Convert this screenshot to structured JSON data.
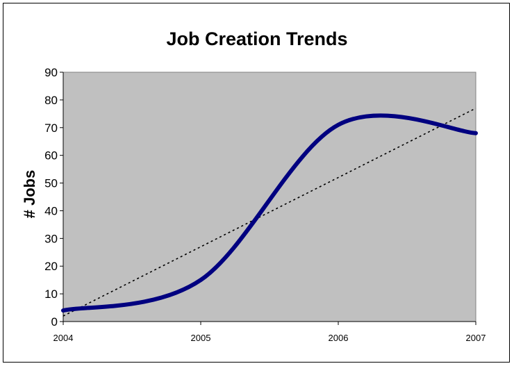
{
  "chart_data": {
    "type": "line",
    "title": "Job Creation Trends",
    "xlabel": "",
    "ylabel": "# Jobs",
    "x_ticks": [
      "2004",
      "2005",
      "2006",
      "2007"
    ],
    "y_ticks": [
      0,
      10,
      20,
      30,
      40,
      50,
      60,
      70,
      80,
      90
    ],
    "xlim": [
      2004,
      2007
    ],
    "ylim": [
      0,
      90
    ],
    "grid": false,
    "series": [
      {
        "values": [
          [
            2004,
            4
          ],
          [
            2005,
            15
          ],
          [
            2006,
            71
          ],
          [
            2007,
            68
          ]
        ],
        "smooth": true,
        "color": "#000080",
        "style": "solid"
      },
      {
        "values": [
          [
            2004,
            2
          ],
          [
            2007,
            77
          ]
        ],
        "color": "#000000",
        "style": "dotted",
        "role": "trendline"
      }
    ],
    "plot_background": "#c0c0c0"
  }
}
